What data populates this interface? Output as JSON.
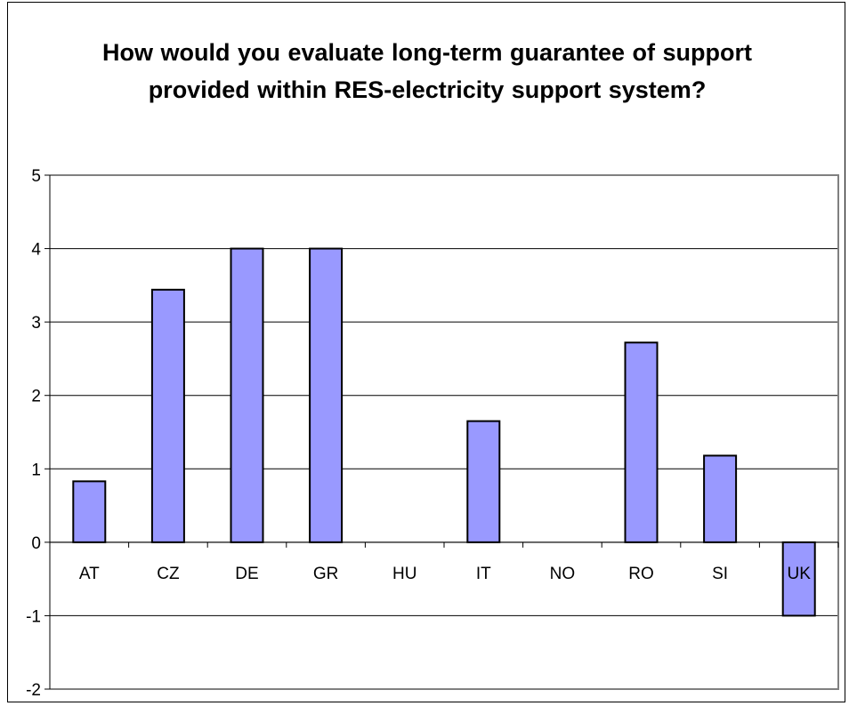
{
  "chart_data": {
    "type": "bar",
    "title": "How would you evaluate long-term guarantee of support provided within RES-electricity support system?",
    "categories": [
      "AT",
      "CZ",
      "DE",
      "GR",
      "HU",
      "IT",
      "NO",
      "RO",
      "SI",
      "UK"
    ],
    "values": [
      0.83,
      3.44,
      4.0,
      4.0,
      0,
      1.65,
      0,
      2.72,
      1.18,
      -1.0
    ],
    "ylim": [
      -2,
      5
    ],
    "yticks": [
      -2,
      -1,
      0,
      1,
      2,
      3,
      4,
      5
    ],
    "grid": true,
    "xlabel": "",
    "ylabel": ""
  },
  "colors": {
    "bar_fill": "#9999ff",
    "bar_stroke": "#000000",
    "gridline": "#000000",
    "plot_border": "#808080"
  }
}
